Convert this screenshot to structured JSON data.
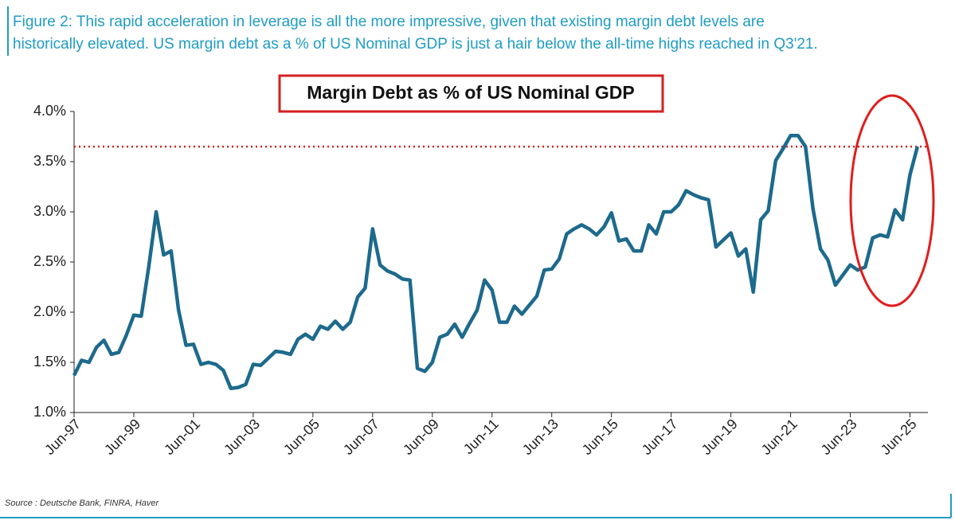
{
  "caption": [
    "Figure 2: This rapid acceleration in leverage is all the more impressive, given that existing margin debt levels are",
    "historically elevated. US margin debt as a % of US Nominal GDP is just a hair below the all-time highs reached in Q3'21."
  ],
  "source": "Source : Deutsche Bank, FINRA, Haver",
  "chart_data": {
    "type": "line",
    "title": "Margin Debt as % of US Nominal GDP",
    "x": [
      1997.5,
      1997.75,
      1998,
      1998.25,
      1998.5,
      1998.75,
      1999,
      1999.25,
      1999.5,
      1999.75,
      2000,
      2000.25,
      2000.5,
      2000.75,
      2001,
      2001.25,
      2001.5,
      2001.75,
      2002,
      2002.25,
      2002.5,
      2002.75,
      2003,
      2003.25,
      2003.5,
      2003.75,
      2004,
      2004.25,
      2004.5,
      2004.75,
      2005,
      2005.25,
      2005.5,
      2005.75,
      2006,
      2006.25,
      2006.5,
      2006.75,
      2007,
      2007.25,
      2007.5,
      2007.75,
      2008,
      2008.25,
      2008.5,
      2008.75,
      2009,
      2009.25,
      2009.5,
      2009.75,
      2010,
      2010.25,
      2010.5,
      2010.75,
      2011,
      2011.25,
      2011.5,
      2011.75,
      2012,
      2012.25,
      2012.5,
      2012.75,
      2013,
      2013.25,
      2013.5,
      2013.75,
      2014,
      2014.25,
      2014.5,
      2014.75,
      2015,
      2015.25,
      2015.5,
      2015.75,
      2016,
      2016.25,
      2016.5,
      2016.75,
      2017,
      2017.25,
      2017.5,
      2017.75,
      2018,
      2018.25,
      2018.5,
      2018.75,
      2019,
      2019.25,
      2019.5,
      2019.75,
      2020,
      2020.25,
      2020.5,
      2020.75,
      2021,
      2021.25,
      2021.5,
      2021.75,
      2022,
      2022.25,
      2022.5,
      2022.75,
      2023,
      2023.25,
      2023.5,
      2023.75,
      2024,
      2024.25,
      2024.5,
      2024.75,
      2025,
      2025.25,
      2025.5,
      2025.75
    ],
    "series": [
      {
        "color": "#1d6a8c",
        "values": [
          1.37,
          1.52,
          1.5,
          1.65,
          1.72,
          1.58,
          1.6,
          1.77,
          1.97,
          1.96,
          2.45,
          3.0,
          2.57,
          2.61,
          2.02,
          1.67,
          1.68,
          1.48,
          1.5,
          1.48,
          1.42,
          1.24,
          1.25,
          1.28,
          1.48,
          1.47,
          1.54,
          1.61,
          1.6,
          1.58,
          1.73,
          1.78,
          1.73,
          1.86,
          1.83,
          1.91,
          1.83,
          1.9,
          2.15,
          2.24,
          2.83,
          2.47,
          2.41,
          2.38,
          2.33,
          2.32,
          1.44,
          1.41,
          1.5,
          1.75,
          1.78,
          1.88,
          1.75,
          1.89,
          2.02,
          2.32,
          2.22,
          1.9,
          1.9,
          2.06,
          1.98,
          2.07,
          2.16,
          2.42,
          2.43,
          2.53,
          2.78,
          2.83,
          2.87,
          2.83,
          2.77,
          2.85,
          2.99,
          2.71,
          2.73,
          2.61,
          2.61,
          2.87,
          2.78,
          3.0,
          3.0,
          3.07,
          3.21,
          3.17,
          3.14,
          3.12,
          2.65,
          2.72,
          2.79,
          2.56,
          2.63,
          2.2,
          2.92,
          3.01,
          3.51,
          3.63,
          3.76,
          3.76,
          3.65,
          3.03,
          2.63,
          2.52,
          2.27,
          2.37,
          2.47,
          2.42,
          2.45,
          2.74,
          2.77,
          2.75,
          3.02,
          2.92,
          3.37,
          3.65
        ]
      }
    ],
    "reference_value": 3.65,
    "reference_color": "#d42020",
    "xlim": [
      1997.5,
      2026.1
    ],
    "ylim": [
      1,
      4
    ],
    "xticks": [
      {
        "value": 1997.5,
        "label": "Jun-97"
      },
      {
        "value": 1999.5,
        "label": "Jun-99"
      },
      {
        "value": 2001.5,
        "label": "Jun-01"
      },
      {
        "value": 2003.5,
        "label": "Jun-03"
      },
      {
        "value": 2005.5,
        "label": "Jun-05"
      },
      {
        "value": 2007.5,
        "label": "Jun-07"
      },
      {
        "value": 2009.5,
        "label": "Jun-09"
      },
      {
        "value": 2011.5,
        "label": "Jun-11"
      },
      {
        "value": 2013.5,
        "label": "Jun-13"
      },
      {
        "value": 2015.5,
        "label": "Jun-15"
      },
      {
        "value": 2017.5,
        "label": "Jun-17"
      },
      {
        "value": 2019.5,
        "label": "Jun-19"
      },
      {
        "value": 2021.5,
        "label": "Jun-21"
      },
      {
        "value": 2023.5,
        "label": "Jun-23"
      },
      {
        "value": 2025.5,
        "label": "Jun-25"
      }
    ],
    "yticks": [
      {
        "value": 1,
        "label": "1.0%"
      },
      {
        "value": 1.5,
        "label": "1.5%"
      },
      {
        "value": 2,
        "label": "2.0%"
      },
      {
        "value": 2.5,
        "label": "2.5%"
      },
      {
        "value": 3,
        "label": "3.0%"
      },
      {
        "value": 3.5,
        "label": "3.5%"
      },
      {
        "value": 4,
        "label": "4.0%"
      }
    ]
  }
}
